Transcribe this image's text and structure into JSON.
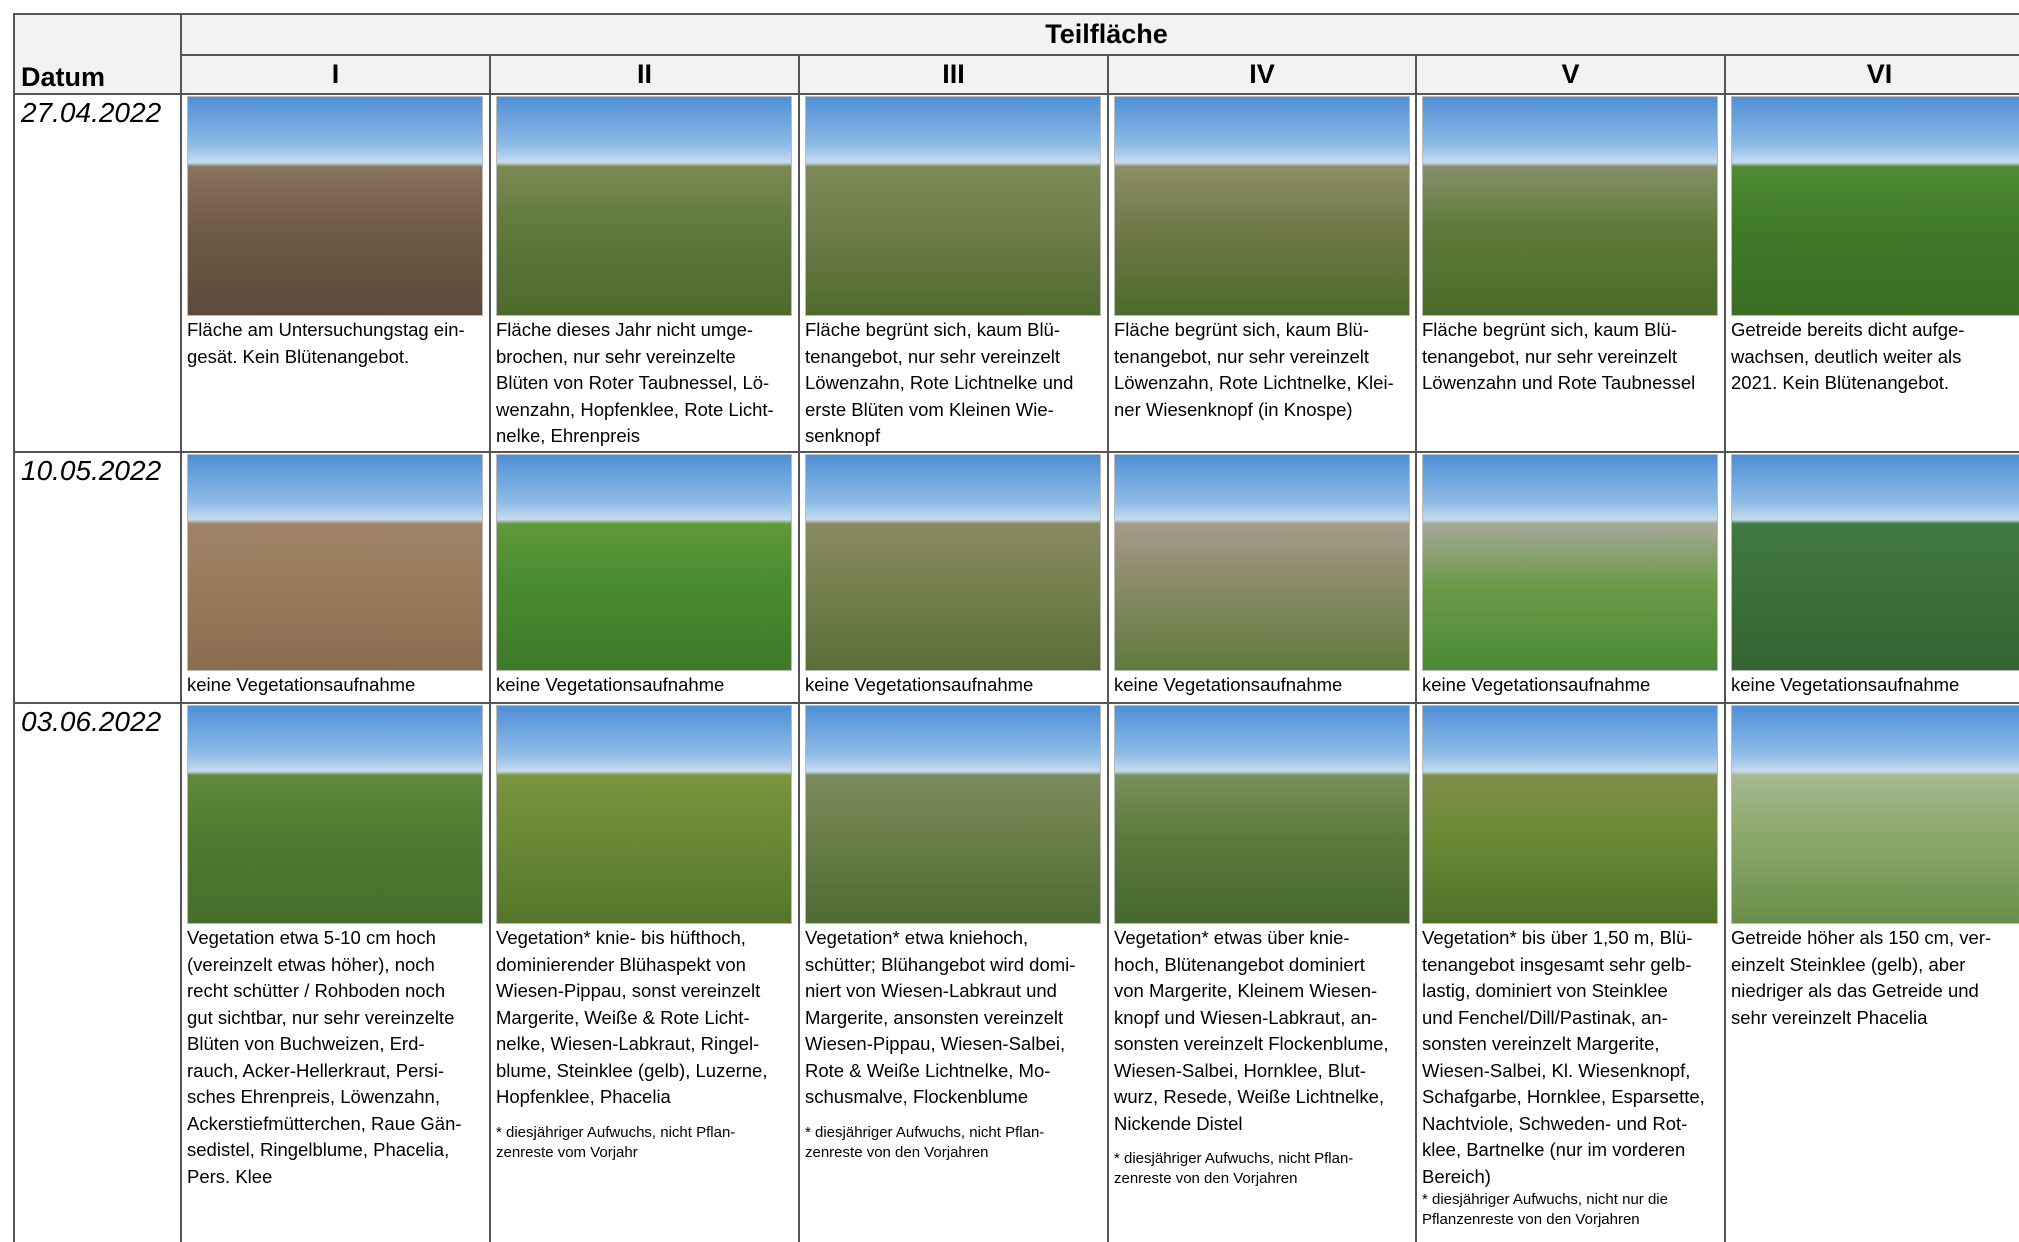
{
  "header": {
    "title": "Teilfläche",
    "date_label": "Datum",
    "columns": [
      "I",
      "II",
      "III",
      "IV",
      "V",
      "VI"
    ]
  },
  "rows": [
    {
      "date": "27.04.2022",
      "cells": [
        {
          "text": "Fläche am Untersuchungstag ein-\ngesät. Kein Blütenangebot."
        },
        {
          "text": "Fläche dieses Jahr nicht umge-\nbrochen, nur sehr vereinzelte\nBlüten von Roter Taubnessel, Lö-\nwenzahn, Hopfenklee, Rote Licht-\nnelke, Ehrenpreis"
        },
        {
          "text": "Fläche begrünt sich, kaum Blü-\ntenangebot, nur sehr vereinzelt\nLöwenzahn, Rote Lichtnelke und\nerste Blüten vom Kleinen Wie-\nsenknopf"
        },
        {
          "text": "Fläche begrünt sich, kaum Blü-\ntenangebot, nur sehr vereinzelt\nLöwenzahn, Rote Lichtnelke, Klei-\nner Wiesenknopf (in Knospe)"
        },
        {
          "text": "Fläche begrünt sich, kaum Blü-\ntenangebot, nur sehr vereinzelt\nLöwenzahn und Rote Taubnessel"
        },
        {
          "text": "Getreide bereits dicht aufge-\nwachsen, deutlich weiter als\n2021. Kein Blütenangebot."
        }
      ]
    },
    {
      "date": "10.05.2022",
      "cells": [
        {
          "text": "keine Vegetationsaufnahme"
        },
        {
          "text": "keine Vegetationsaufnahme"
        },
        {
          "text": "keine Vegetationsaufnahme"
        },
        {
          "text": "keine Vegetationsaufnahme"
        },
        {
          "text": "keine Vegetationsaufnahme"
        },
        {
          "text": "keine Vegetationsaufnahme"
        }
      ]
    },
    {
      "date": "03.06.2022",
      "cells": [
        {
          "text": "Vegetation etwa 5-10 cm hoch\n(vereinzelt etwas höher), noch\nrecht schütter / Rohboden noch\ngut sichtbar, nur sehr vereinzelte\nBlüten von Buchweizen, Erd-\nrauch, Acker-Hellerkraut, Persi-\nsches Ehrenpreis, Löwenzahn,\nAckerstiefmütterchen, Raue Gän-\nsedistel, Ringelblume, Phacelia,\nPers. Klee"
        },
        {
          "text": "Vegetation* knie- bis hüfthoch,\ndominierender Blühaspekt von\nWiesen-Pippau, sonst vereinzelt\nMargerite, Weiße & Rote Licht-\nnelke, Wiesen-Labkraut, Ringel-\nblume, Steinklee (gelb), Luzerne,\nHopfenklee, Phacelia",
          "note": "* diesjähriger Aufwuchs, nicht Pflan-\nzenreste vom Vorjahr"
        },
        {
          "text": "Vegetation* etwa kniehoch,\nschütter; Blühangebot wird domi-\nniert von Wiesen-Labkraut und\nMargerite, ansonsten vereinzelt\nWiesen-Pippau, Wiesen-Salbei,\nRote & Weiße Lichtnelke, Mo-\nschusmalve, Flockenblume",
          "note": "* diesjähriger Aufwuchs, nicht Pflan-\nzenreste von den Vorjahren"
        },
        {
          "text": "Vegetation* etwas über knie-\nhoch, Blütenangebot dominiert\nvon Margerite, Kleinem Wiesen-\nknopf und Wiesen-Labkraut, an-\nsonsten vereinzelt Flockenblume,\nWiesen-Salbei, Hornklee, Blut-\nwurz, Resede, Weiße Lichtnelke,\nNickende Distel",
          "note": "* diesjähriger Aufwuchs, nicht Pflan-\nzenreste von den Vorjahren"
        },
        {
          "text": "Vegetation* bis über 1,50 m, Blü-\ntenangebot insgesamt sehr gelb-\nlastig, dominiert von Steinklee\nund Fenchel/Dill/Pastinak, an-\nsonsten vereinzelt Margerite,\nWiesen-Salbei, Kl. Wiesenknopf,\nSchafgarbe, Hornklee, Esparsette,\nNachtviole, Schweden- und Rot-\nklee, Bartnelke (nur im vorderen\nBereich)",
          "note": "* diesjähriger Aufwuchs, nicht nur die\nPflanzenreste von den Vorjahren"
        },
        {
          "text": "Getreide höher als 150 cm, ver-\neinzelt Steinklee (gelb), aber\nniedriger als das Getreide und\nsehr vereinzelt Phacelia"
        }
      ]
    }
  ]
}
